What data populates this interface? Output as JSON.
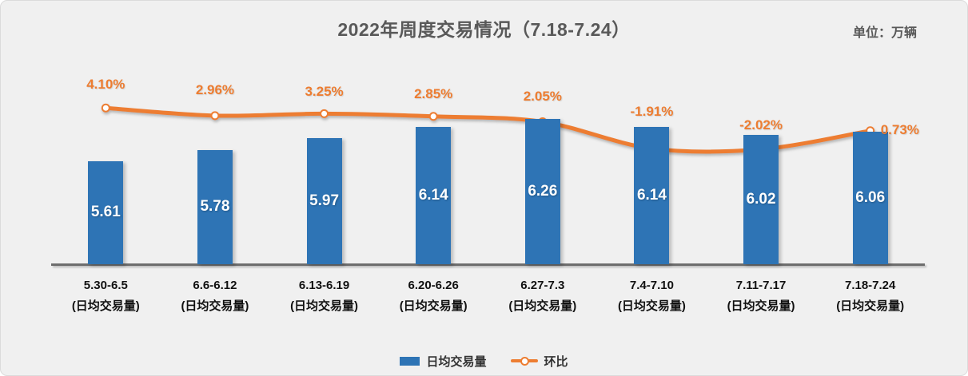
{
  "header": {
    "title": "2022年周度交易情况（7.18-7.24）",
    "unit_label": "单位：万辆"
  },
  "chart_data": {
    "type": "combo_bar_line",
    "title": "2022年周度交易情况（7.18-7.24）",
    "unit": "万辆",
    "categories": [
      "5.30-6.5",
      "6.6-6.12",
      "6.13-6.19",
      "6.20-6.26",
      "6.27-7.3",
      "7.4-7.10",
      "7.11-7.17",
      "7.18-7.24"
    ],
    "category_sublabel": "(日均交易量)",
    "series": [
      {
        "name": "日均交易量",
        "type": "bar",
        "color": "#2E74B5",
        "values": [
          5.61,
          5.78,
          5.97,
          6.14,
          6.26,
          6.14,
          6.02,
          6.06
        ],
        "value_labels": [
          "5.61",
          "5.78",
          "5.97",
          "6.14",
          "6.26",
          "6.14",
          "6.02",
          "6.06"
        ]
      },
      {
        "name": "环比",
        "type": "line",
        "color": "#ED7D31",
        "values_percent": [
          4.1,
          2.96,
          3.25,
          2.85,
          2.05,
          -1.91,
          -2.02,
          0.73
        ],
        "labels": [
          "4.10%",
          "2.96%",
          "3.25%",
          "2.85%",
          "2.05%",
          "-1.91%",
          "-2.02%",
          "0.73%"
        ]
      }
    ],
    "ylabel": "",
    "xlabel": "",
    "grid": false,
    "legend_position": "bottom"
  },
  "legend": {
    "bar_label": "日均交易量",
    "line_label": "环比"
  },
  "colors": {
    "bar": "#2E74B5",
    "line": "#ED7D31",
    "title_text": "#595959",
    "axis_line": "#6E6E6E",
    "background": "#F0F0F0"
  }
}
